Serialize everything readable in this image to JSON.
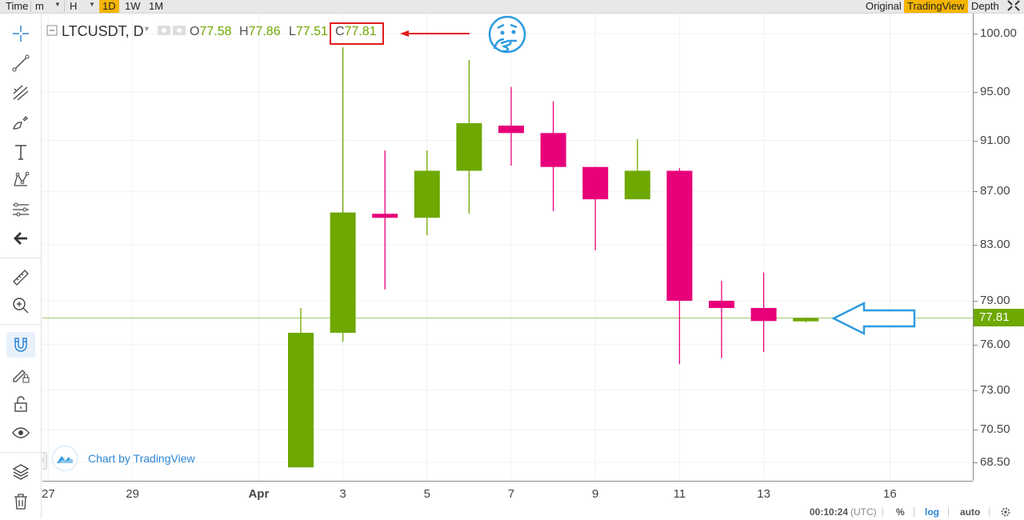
{
  "topbar": {
    "time_label": "Time",
    "minute_label": "m",
    "hour_label": "H",
    "day_label": "1D",
    "week_label": "1W",
    "month_label": "1M",
    "original_label": "Original",
    "tradingview_label": "TradingView",
    "depth_label": "Depth",
    "active_interval": "1D",
    "active_view": "TradingView",
    "accent_color": "#f5b400"
  },
  "toolbar": {
    "tools": [
      "crosshair-icon",
      "trend-line-icon",
      "pitchfork-icon",
      "brush-icon",
      "text-icon",
      "pattern-icon",
      "fibonacci-icon",
      "back-arrow-icon",
      "ruler-icon",
      "zoom-in-icon",
      "magnet-icon",
      "lock-drawing-icon",
      "unlock-icon",
      "eye-icon",
      "layers-icon",
      "trash-icon"
    ]
  },
  "legend": {
    "symbol": "LTCUSDT, D",
    "open_label": "O",
    "open_value": "77.58",
    "high_label": "H",
    "high_value": "77.86",
    "low_label": "L",
    "low_value": "77.51",
    "close_label": "C",
    "close_value": "77.81"
  },
  "brand": {
    "text": "Chart by TradingView"
  },
  "price_axis": {
    "ticks": [
      "100.00",
      "95.00",
      "91.00",
      "87.00",
      "83.00",
      "79.00",
      "76.00",
      "73.00",
      "70.50",
      "68.50"
    ],
    "last_price": "77.81",
    "scale": "log"
  },
  "time_axis": {
    "ticks": [
      "27",
      "29",
      "Apr",
      "3",
      "5",
      "7",
      "9",
      "11",
      "13",
      "16"
    ]
  },
  "statusbar": {
    "time": "00:10:24",
    "timezone": "(UTC)",
    "percent_label": "%",
    "log_label": "log",
    "auto_label": "auto",
    "log_active": true
  },
  "chart_data": {
    "type": "candlestick",
    "symbol": "LTCUSDT",
    "interval": "D",
    "up_color": "#6ea800",
    "down_color": "#e7007a",
    "x": [
      "Apr 2",
      "Apr 3",
      "Apr 4",
      "Apr 5",
      "Apr 6",
      "Apr 7",
      "Apr 8",
      "Apr 9",
      "Apr 10",
      "Apr 11",
      "Apr 12",
      "Apr 13",
      "Apr 14"
    ],
    "open": [
      68.2,
      76.8,
      85.3,
      85.0,
      88.6,
      92.2,
      91.6,
      88.9,
      86.4,
      88.6,
      79.0,
      78.5,
      77.58
    ],
    "high": [
      78.5,
      98.8,
      90.2,
      90.2,
      97.7,
      95.4,
      94.2,
      88.9,
      91.1,
      88.8,
      80.4,
      81.0,
      77.86
    ],
    "low": [
      68.2,
      76.2,
      79.8,
      83.7,
      85.3,
      89.0,
      85.5,
      82.6,
      86.4,
      74.7,
      75.1,
      75.5,
      77.51
    ],
    "close": [
      76.8,
      85.4,
      85.0,
      88.6,
      92.4,
      91.6,
      88.9,
      86.4,
      88.6,
      79.0,
      78.5,
      77.6,
      77.81
    ],
    "ylim": [
      68.0,
      101.5
    ],
    "y_scale": "log",
    "last_price": 77.81
  }
}
